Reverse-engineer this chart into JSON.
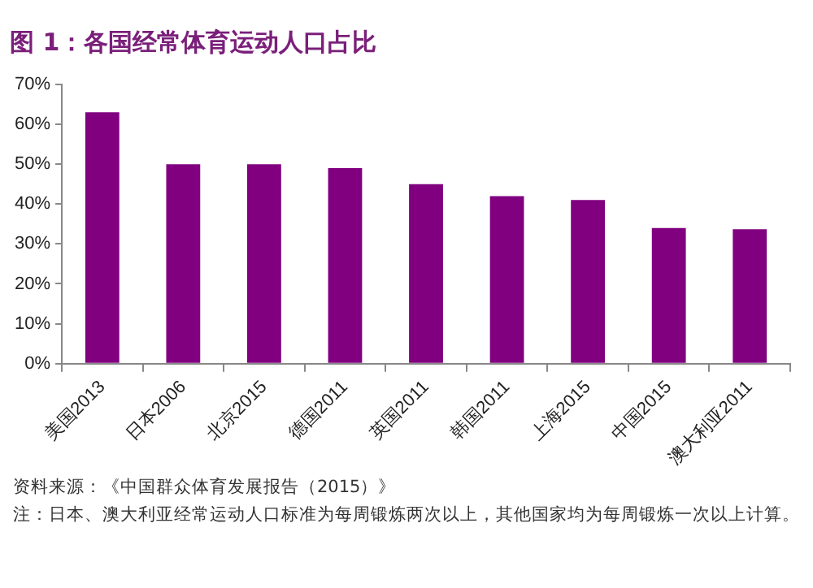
{
  "chart_data": {
    "type": "bar",
    "title": "图 1：各国经常体育运动人口占比",
    "categories": [
      "美国2013",
      "日本2006",
      "北京2015",
      "德国2011",
      "英国2011",
      "韩国2011",
      "上海2015",
      "中国2015",
      "澳大利亚2011"
    ],
    "values": [
      63,
      50,
      50,
      49,
      45,
      42,
      41,
      34,
      33.7
    ],
    "color": "#800080",
    "ylim": [
      0,
      70
    ],
    "yticks": [
      {
        "value": 0,
        "label": "0%"
      },
      {
        "value": 10,
        "label": "10%"
      },
      {
        "value": 20,
        "label": "20%"
      },
      {
        "value": 30,
        "label": "30%"
      },
      {
        "value": 40,
        "label": "40%"
      },
      {
        "value": 50,
        "label": "50%"
      },
      {
        "value": 60,
        "label": "60%"
      },
      {
        "value": 70,
        "label": "70%"
      }
    ],
    "grid": false,
    "legend": false,
    "annotations": [
      "资料来源：《中国群众体育发展报告（2015）》",
      "注：日本、澳大利亚经常运动人口标准为每周锻炼两次以上，其他国家均为每周锻炼一次以上计算。"
    ]
  }
}
